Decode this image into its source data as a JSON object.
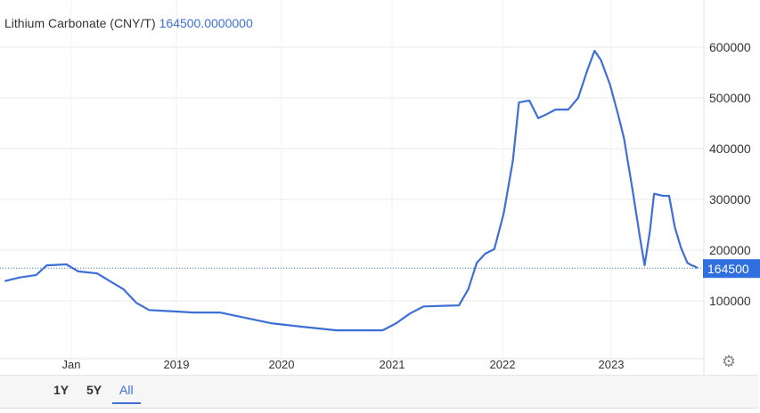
{
  "header": {
    "title": "Lithium Carbonate (CNY/T)",
    "current_value": "164500.0000000"
  },
  "range_buttons": [
    {
      "label": "1Y",
      "active": false
    },
    {
      "label": "5Y",
      "active": false
    },
    {
      "label": "All",
      "active": true
    }
  ],
  "settings_icon": "gear-icon",
  "colors": {
    "line": "#3d6fd6",
    "last_badge": "#2f6fe0",
    "grid": "#e8e8e8"
  },
  "chart_data": {
    "type": "line",
    "title": "Lithium Carbonate (CNY/T)",
    "y_axis_position": "right",
    "grid": true,
    "ylim": [
      0,
      680000
    ],
    "y_ticks": [
      100000,
      200000,
      300000,
      400000,
      500000,
      600000
    ],
    "y_tick_labels": [
      "100000",
      "200000",
      "300000",
      "400000",
      "500000",
      "600000"
    ],
    "x_tick_labels": [
      "Jan",
      "2019",
      "2020",
      "2021",
      "2022",
      "2023"
    ],
    "x_ticks": [
      "2018-01-01",
      "2019-01-01",
      "2020-01-01",
      "2021-01-01",
      "2022-01-01",
      "2023-01-01"
    ],
    "last_value_label": "164500",
    "last_value": 164500,
    "series": [
      {
        "x": [
          "2017-05-15",
          "2017-07-05",
          "2017-09-01",
          "2017-10-08",
          "2017-12-15",
          "2018-01-25",
          "2018-04-01",
          "2018-05-15",
          "2018-07-01",
          "2018-08-15",
          "2018-09-28",
          "2019-01-01",
          "2019-03-01",
          "2019-06-01",
          "2019-09-10",
          "2019-11-25",
          "2020-03-10",
          "2020-07-01",
          "2020-12-01",
          "2021-01-15",
          "2021-03-01",
          "2021-04-15",
          "2021-08-10",
          "2021-09-10",
          "2021-10-08",
          "2021-11-05",
          "2021-12-05",
          "2022-01-05",
          "2022-02-05",
          "2022-02-25",
          "2022-04-01",
          "2022-05-01",
          "2022-05-30",
          "2022-06-28",
          "2022-08-10",
          "2022-09-12",
          "2022-10-12",
          "2022-11-06",
          "2022-11-28",
          "2022-12-28",
          "2023-01-23",
          "2023-02-13",
          "2023-03-15",
          "2023-04-10",
          "2023-04-24",
          "2023-05-12",
          "2023-05-26",
          "2023-06-25",
          "2023-07-16",
          "2023-08-04",
          "2023-08-25",
          "2023-09-16",
          "2023-09-30",
          "2023-10-10",
          "2023-10-20"
        ],
        "values": [
          139000,
          146000,
          151000,
          170000,
          172000,
          158000,
          154000,
          139000,
          123000,
          96000,
          82000,
          79000,
          77000,
          77000,
          65000,
          56000,
          49000,
          42000,
          42000,
          56000,
          75000,
          89000,
          91000,
          123000,
          175000,
          193000,
          202000,
          272000,
          377000,
          491000,
          495000,
          460000,
          468000,
          477000,
          477000,
          500000,
          553000,
          593000,
          574000,
          526000,
          470000,
          421000,
          316000,
          219000,
          170000,
          237000,
          311000,
          307000,
          307000,
          246000,
          205000,
          175000,
          170000,
          168000,
          164500
        ]
      }
    ]
  }
}
